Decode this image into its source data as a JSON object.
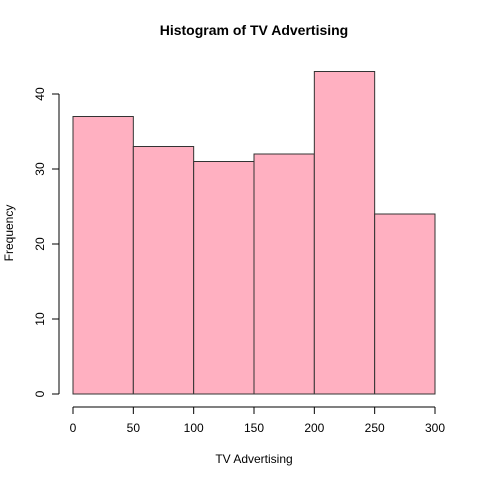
{
  "chart_data": {
    "type": "bar",
    "title": "Histogram of TV Advertising",
    "xlabel": "TV Advertising",
    "ylabel": "Frequency",
    "bins": [
      {
        "from": 0,
        "to": 50,
        "value": 37
      },
      {
        "from": 50,
        "to": 100,
        "value": 33
      },
      {
        "from": 100,
        "to": 150,
        "value": 31
      },
      {
        "from": 150,
        "to": 200,
        "value": 32
      },
      {
        "from": 200,
        "to": 250,
        "value": 43
      },
      {
        "from": 250,
        "to": 300,
        "value": 24
      }
    ],
    "xlim": [
      0,
      300
    ],
    "ylim": [
      0,
      40
    ],
    "xticks": [
      0,
      50,
      100,
      150,
      200,
      250,
      300
    ],
    "yticks": [
      0,
      10,
      20,
      30,
      40
    ],
    "bar_color": "#ffb0c1",
    "grid": false
  }
}
